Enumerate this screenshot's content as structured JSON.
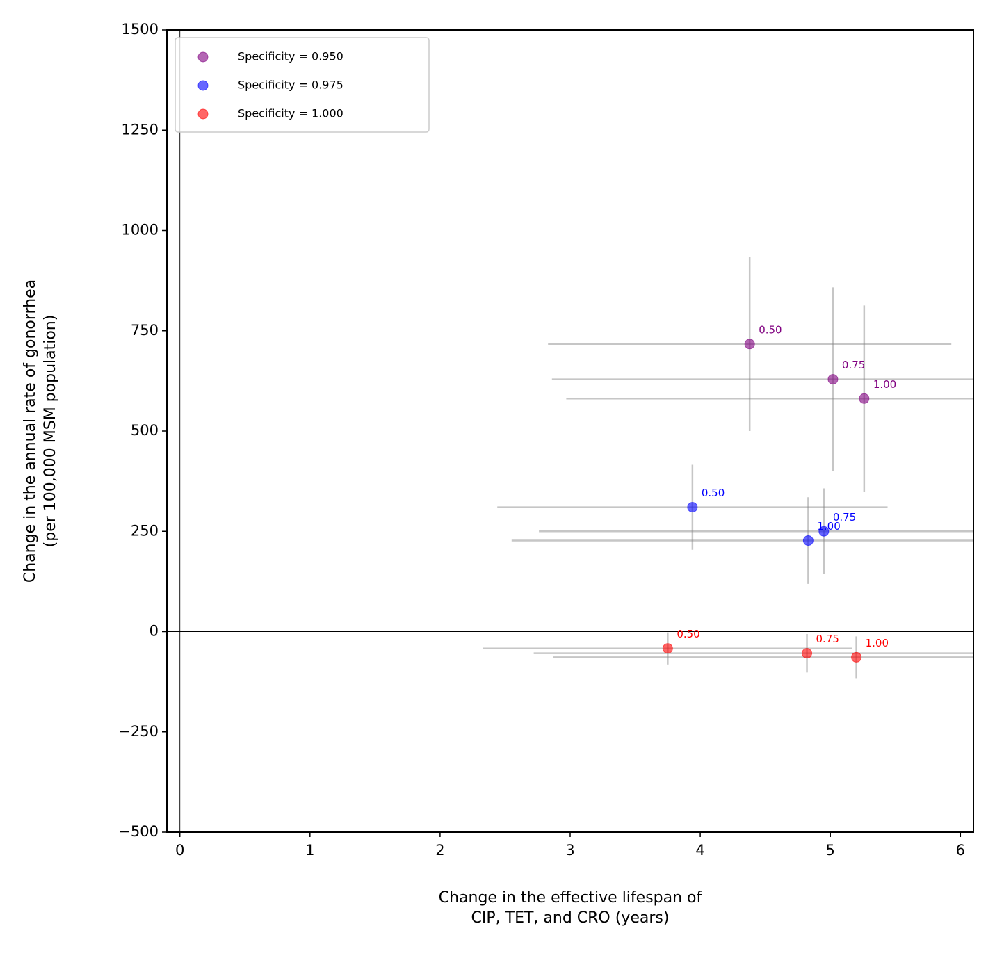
{
  "chart_data": {
    "type": "scatter",
    "xlabel": [
      "Change in the effective lifespan of",
      "CIP, TET, and CRO (years)"
    ],
    "ylabel": [
      "Change in the annual rate of gonorrhea",
      "(per 100,000 MSM population)"
    ],
    "xlim": [
      -0.1,
      6.1
    ],
    "ylim": [
      -500,
      1500
    ],
    "xticks": [
      0,
      1,
      2,
      3,
      4,
      5,
      6
    ],
    "yticks": [
      {
        "value": -500,
        "label": "−500"
      },
      {
        "value": -250,
        "label": "−250"
      },
      0,
      250,
      500,
      750,
      1000,
      1250,
      1500
    ],
    "hlines": [
      0
    ],
    "vlines": [
      0
    ],
    "legend": "upper left",
    "errorbar_color": "#808080",
    "series": [
      {
        "name": "Specificity = 0.950",
        "color": "#800080",
        "x": [
          4.38,
          5.02,
          5.26
        ],
        "values": [
          717,
          629,
          581
        ],
        "xerr": [
          1.55,
          2.16,
          2.29
        ],
        "yerr": [
          217,
          229,
          232
        ],
        "labels": [
          "0.50",
          "0.75",
          "1.00"
        ]
      },
      {
        "name": "Specificity = 0.975",
        "color": "#0000ff",
        "x": [
          3.94,
          4.95,
          4.83
        ],
        "values": [
          310,
          250,
          227
        ],
        "xerr": [
          1.5,
          2.19,
          2.28
        ],
        "yerr": [
          106,
          107,
          108
        ],
        "labels": [
          "0.50",
          "0.75",
          "1.00"
        ]
      },
      {
        "name": "Specificity = 1.000",
        "color": "#ff0000",
        "x": [
          3.75,
          4.82,
          5.2
        ],
        "values": [
          -42,
          -54,
          -64
        ],
        "xerr": [
          1.42,
          2.1,
          2.33
        ],
        "yerr": [
          40,
          48,
          52
        ],
        "labels": [
          "0.50",
          "0.75",
          "1.00"
        ]
      }
    ]
  }
}
